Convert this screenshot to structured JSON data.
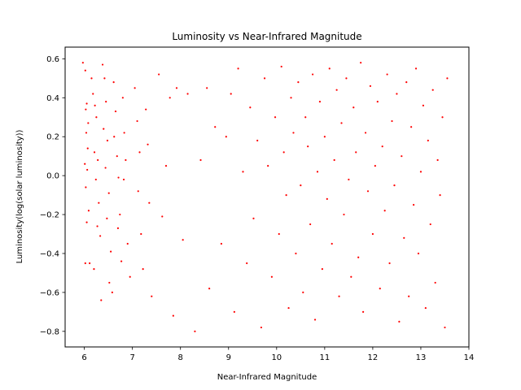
{
  "chart_data": {
    "type": "scatter",
    "title": "Luminosity vs Near-Infrared Magnitude",
    "xlabel": "Near-Infrared Magnitude",
    "ylabel": "Luminosity(log(solar luminosity))",
    "xlim": [
      5.6,
      14.0
    ],
    "ylim": [
      -0.88,
      0.66
    ],
    "xticks": [
      6,
      7,
      8,
      9,
      10,
      11,
      12,
      13,
      14
    ],
    "yticks": [
      -0.8,
      -0.6,
      -0.4,
      -0.2,
      0.0,
      0.2,
      0.4,
      0.6
    ],
    "xtick_labels": [
      "6",
      "7",
      "8",
      "9",
      "10",
      "11",
      "12",
      "13",
      "14"
    ],
    "ytick_labels": [
      "−0.8",
      "−0.6",
      "−0.4",
      "−0.2",
      "0.0",
      "0.2",
      "0.4",
      "0.6"
    ],
    "grid": false,
    "legend": "none",
    "marker_color": "#ff0000",
    "series": [
      {
        "points": [
          [
            5.97,
            0.58
          ],
          [
            6.02,
            0.54
          ],
          [
            6.05,
            0.37
          ],
          [
            6.03,
            0.34
          ],
          [
            6.08,
            0.27
          ],
          [
            6.04,
            0.22
          ],
          [
            6.07,
            0.14
          ],
          [
            6.01,
            0.06
          ],
          [
            6.06,
            0.03
          ],
          [
            6.03,
            -0.06
          ],
          [
            6.09,
            -0.18
          ],
          [
            6.05,
            -0.24
          ],
          [
            6.02,
            -0.45
          ],
          [
            6.11,
            -0.45
          ],
          [
            6.15,
            0.5
          ],
          [
            6.18,
            0.42
          ],
          [
            6.22,
            0.36
          ],
          [
            6.25,
            0.3
          ],
          [
            6.21,
            0.12
          ],
          [
            6.28,
            0.08
          ],
          [
            6.24,
            -0.02
          ],
          [
            6.3,
            -0.14
          ],
          [
            6.27,
            -0.26
          ],
          [
            6.33,
            -0.31
          ],
          [
            6.2,
            -0.48
          ],
          [
            6.35,
            -0.64
          ],
          [
            6.38,
            0.57
          ],
          [
            6.42,
            0.5
          ],
          [
            6.45,
            0.38
          ],
          [
            6.4,
            0.24
          ],
          [
            6.48,
            0.18
          ],
          [
            6.44,
            0.04
          ],
          [
            6.51,
            -0.09
          ],
          [
            6.47,
            -0.22
          ],
          [
            6.55,
            -0.39
          ],
          [
            6.52,
            -0.55
          ],
          [
            6.58,
            -0.6
          ],
          [
            6.61,
            0.48
          ],
          [
            6.65,
            0.33
          ],
          [
            6.62,
            0.2
          ],
          [
            6.68,
            0.1
          ],
          [
            6.71,
            -0.01
          ],
          [
            6.74,
            -0.2
          ],
          [
            6.7,
            -0.27
          ],
          [
            6.77,
            -0.44
          ],
          [
            6.8,
            0.4
          ],
          [
            6.83,
            0.22
          ],
          [
            6.86,
            0.08
          ],
          [
            6.82,
            -0.02
          ],
          [
            6.9,
            -0.35
          ],
          [
            6.95,
            -0.52
          ],
          [
            7.05,
            0.45
          ],
          [
            7.1,
            0.28
          ],
          [
            7.15,
            0.12
          ],
          [
            7.12,
            -0.08
          ],
          [
            7.18,
            -0.3
          ],
          [
            7.22,
            -0.48
          ],
          [
            7.28,
            0.34
          ],
          [
            7.32,
            0.16
          ],
          [
            7.35,
            -0.14
          ],
          [
            7.4,
            -0.62
          ],
          [
            7.55,
            0.52
          ],
          [
            7.62,
            -0.21
          ],
          [
            7.7,
            0.05
          ],
          [
            7.78,
            0.4
          ],
          [
            7.85,
            -0.72
          ],
          [
            7.92,
            0.45
          ],
          [
            8.05,
            -0.33
          ],
          [
            8.15,
            0.42
          ],
          [
            8.3,
            -0.8
          ],
          [
            8.42,
            0.08
          ],
          [
            8.55,
            0.45
          ],
          [
            8.6,
            -0.58
          ],
          [
            8.72,
            0.25
          ],
          [
            8.85,
            -0.35
          ],
          [
            8.95,
            0.2
          ],
          [
            9.05,
            0.42
          ],
          [
            9.12,
            -0.7
          ],
          [
            9.2,
            0.55
          ],
          [
            9.3,
            0.02
          ],
          [
            9.38,
            -0.45
          ],
          [
            9.45,
            0.35
          ],
          [
            9.52,
            -0.22
          ],
          [
            9.6,
            0.18
          ],
          [
            9.68,
            -0.78
          ],
          [
            9.75,
            0.5
          ],
          [
            9.82,
            0.05
          ],
          [
            9.9,
            -0.52
          ],
          [
            9.97,
            0.3
          ],
          [
            10.05,
            -0.3
          ],
          [
            10.1,
            0.56
          ],
          [
            10.15,
            0.12
          ],
          [
            10.2,
            -0.1
          ],
          [
            10.25,
            -0.68
          ],
          [
            10.3,
            0.4
          ],
          [
            10.35,
            0.22
          ],
          [
            10.4,
            -0.4
          ],
          [
            10.45,
            0.48
          ],
          [
            10.5,
            -0.05
          ],
          [
            10.55,
            -0.6
          ],
          [
            10.6,
            0.3
          ],
          [
            10.65,
            0.15
          ],
          [
            10.7,
            -0.25
          ],
          [
            10.75,
            0.52
          ],
          [
            10.8,
            -0.74
          ],
          [
            10.85,
            0.02
          ],
          [
            10.9,
            0.38
          ],
          [
            10.95,
            -0.48
          ],
          [
            11.0,
            0.2
          ],
          [
            11.05,
            -0.12
          ],
          [
            11.1,
            0.55
          ],
          [
            11.15,
            -0.35
          ],
          [
            11.2,
            0.08
          ],
          [
            11.25,
            0.44
          ],
          [
            11.3,
            -0.62
          ],
          [
            11.35,
            0.27
          ],
          [
            11.4,
            -0.2
          ],
          [
            11.45,
            0.5
          ],
          [
            11.5,
            -0.02
          ],
          [
            11.55,
            -0.52
          ],
          [
            11.6,
            0.35
          ],
          [
            11.65,
            0.12
          ],
          [
            11.7,
            -0.42
          ],
          [
            11.75,
            0.58
          ],
          [
            11.8,
            -0.7
          ],
          [
            11.85,
            0.22
          ],
          [
            11.9,
            -0.08
          ],
          [
            11.95,
            0.46
          ],
          [
            12.0,
            -0.3
          ],
          [
            12.05,
            0.05
          ],
          [
            12.1,
            0.38
          ],
          [
            12.15,
            -0.58
          ],
          [
            12.2,
            0.15
          ],
          [
            12.25,
            -0.18
          ],
          [
            12.3,
            0.52
          ],
          [
            12.35,
            -0.45
          ],
          [
            12.4,
            0.28
          ],
          [
            12.45,
            -0.05
          ],
          [
            12.5,
            0.42
          ],
          [
            12.55,
            -0.75
          ],
          [
            12.6,
            0.1
          ],
          [
            12.65,
            -0.32
          ],
          [
            12.7,
            0.48
          ],
          [
            12.75,
            -0.62
          ],
          [
            12.8,
            0.25
          ],
          [
            12.85,
            -0.15
          ],
          [
            12.9,
            0.55
          ],
          [
            12.95,
            -0.4
          ],
          [
            13.0,
            0.02
          ],
          [
            13.05,
            0.36
          ],
          [
            13.1,
            -0.68
          ],
          [
            13.15,
            0.18
          ],
          [
            13.2,
            -0.25
          ],
          [
            13.25,
            0.44
          ],
          [
            13.3,
            -0.55
          ],
          [
            13.35,
            0.08
          ],
          [
            13.4,
            -0.1
          ],
          [
            13.45,
            0.3
          ],
          [
            13.5,
            -0.78
          ],
          [
            13.55,
            0.5
          ]
        ]
      }
    ]
  }
}
